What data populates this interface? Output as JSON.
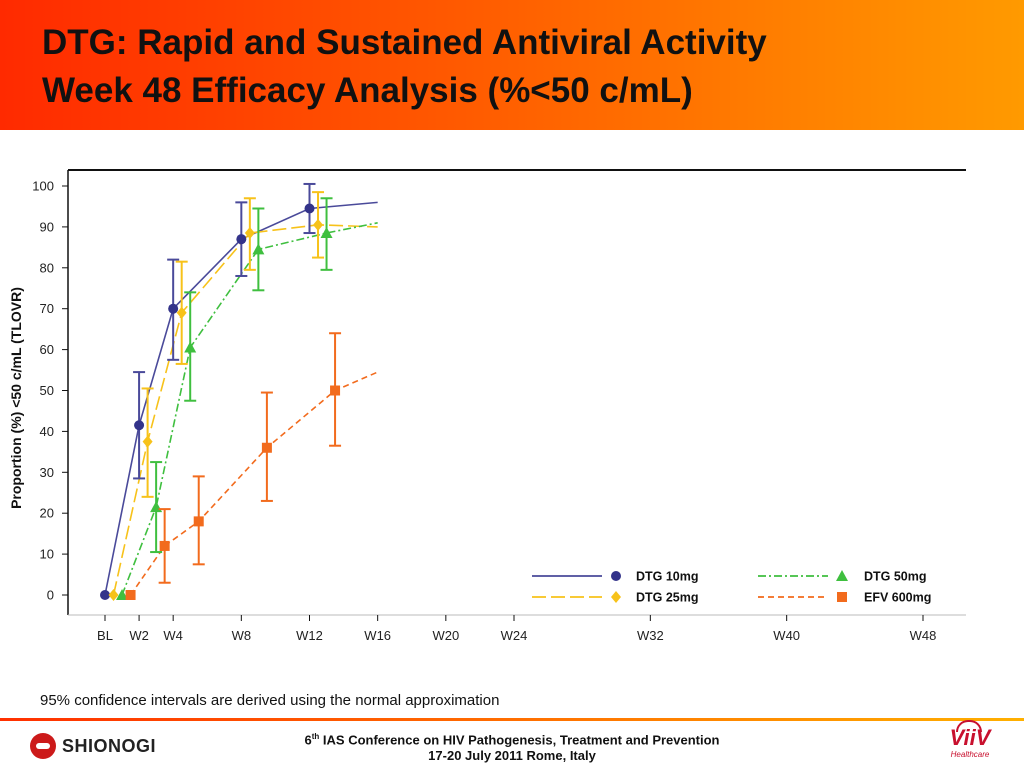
{
  "header": {
    "title_line_1": "DTG: Rapid and Sustained Antiviral Activity",
    "title_line_2": "Week 48 Efficacy Analysis (%<50 c/mL)"
  },
  "chart_data": {
    "type": "line",
    "title": "",
    "ylabel": "Proportion (%) <50 c/mL (TLOVR)",
    "xlabel": "",
    "ylim": [
      0,
      100
    ],
    "yticks": [
      0,
      10,
      20,
      30,
      40,
      50,
      60,
      70,
      80,
      90,
      100
    ],
    "x_categories": [
      "BL",
      "W2",
      "W4",
      "W8",
      "W12",
      "W16",
      "W20",
      "W24",
      "W32",
      "W40",
      "W48"
    ],
    "x_weeks": [
      0,
      2,
      4,
      8,
      12,
      16,
      20,
      24,
      32,
      40,
      48
    ],
    "legend_placement": "bottom-right",
    "series": [
      {
        "name": "DTG 10mg",
        "color": "#4a4a9a",
        "marker": "circle",
        "dash": "solid",
        "offset_weeks": 0,
        "points": [
          {
            "week": 0,
            "y": 0,
            "lo": 0,
            "hi": 0
          },
          {
            "week": 2,
            "y": 41.5,
            "lo": 28.5,
            "hi": 54.5
          },
          {
            "week": 4,
            "y": 70,
            "lo": 57.5,
            "hi": 82
          },
          {
            "week": 8,
            "y": 87,
            "lo": 78,
            "hi": 96
          },
          {
            "week": 12,
            "y": 94.5,
            "lo": 88.5,
            "hi": 100.5
          }
        ],
        "line": [
          [
            0,
            0
          ],
          [
            2,
            41.5
          ],
          [
            4,
            70
          ],
          [
            8,
            87
          ],
          [
            12,
            94.5
          ],
          [
            16,
            96
          ]
        ]
      },
      {
        "name": "DTG 25mg",
        "color": "#f7c21a",
        "marker": "diamond",
        "dash": "14,5",
        "offset_weeks": 0.5,
        "points": [
          {
            "week": 0,
            "y": 0,
            "lo": 0,
            "hi": 0
          },
          {
            "week": 2,
            "y": 37.5,
            "lo": 24,
            "hi": 50.5
          },
          {
            "week": 4,
            "y": 69,
            "lo": 56.5,
            "hi": 81.5
          },
          {
            "week": 8,
            "y": 88.5,
            "lo": 79.5,
            "hi": 97
          },
          {
            "week": 12,
            "y": 90.5,
            "lo": 82.5,
            "hi": 98.5
          }
        ],
        "line": [
          [
            0.5,
            0
          ],
          [
            2.5,
            37.5
          ],
          [
            4.5,
            69
          ],
          [
            8.5,
            88.5
          ],
          [
            12.5,
            90.5
          ],
          [
            16,
            90
          ]
        ]
      },
      {
        "name": "DTG 50mg",
        "color": "#3fbf3f",
        "marker": "triangle",
        "dash": "8,3,2,3",
        "offset_weeks": 1,
        "points": [
          {
            "week": 0,
            "y": 0,
            "lo": 0,
            "hi": 0
          },
          {
            "week": 2,
            "y": 21.5,
            "lo": 10.5,
            "hi": 32.5
          },
          {
            "week": 4,
            "y": 60.5,
            "lo": 47.5,
            "hi": 74
          },
          {
            "week": 8,
            "y": 84.5,
            "lo": 74.5,
            "hi": 94.5
          },
          {
            "week": 12,
            "y": 88.5,
            "lo": 79.5,
            "hi": 97
          }
        ],
        "line": [
          [
            1,
            0
          ],
          [
            3,
            21.5
          ],
          [
            5,
            60.5
          ],
          [
            9,
            84.5
          ],
          [
            13,
            88.5
          ],
          [
            16,
            91
          ]
        ]
      },
      {
        "name": "EFV 600mg",
        "color": "#f26b1d",
        "marker": "square",
        "dash": "6,4",
        "offset_weeks": 1.5,
        "points": [
          {
            "week": 0,
            "y": 0,
            "lo": 0,
            "hi": 0
          },
          {
            "week": 2,
            "y": 12,
            "lo": 3,
            "hi": 21
          },
          {
            "week": 4,
            "y": 18,
            "lo": 7.5,
            "hi": 29
          },
          {
            "week": 8,
            "y": 36,
            "lo": 23,
            "hi": 49.5
          },
          {
            "week": 12,
            "y": 50,
            "lo": 36.5,
            "hi": 64
          }
        ],
        "line": [
          [
            1.5,
            0
          ],
          [
            3.5,
            12
          ],
          [
            5.5,
            18
          ],
          [
            9.5,
            36
          ],
          [
            13.5,
            50
          ],
          [
            16,
            54.5
          ]
        ]
      }
    ]
  },
  "footnote": "95% confidence intervals are derived using the normal approximation",
  "footer": {
    "conference_ordinal": "6",
    "conference_ordinal_suffix": "th",
    "conference_rest": " IAS Conference on HIV Pathogenesis, Treatment and Prevention",
    "conference_dates": "17-20 July 2011 Rome, Italy",
    "left_logo_text": "SHIONOGI",
    "right_logo_text": "ViiV",
    "right_logo_sub": "Healthcare"
  }
}
